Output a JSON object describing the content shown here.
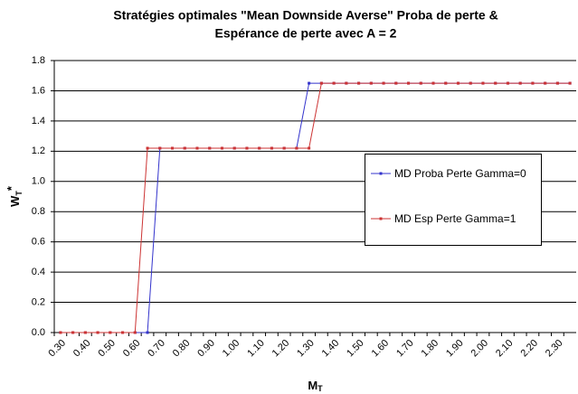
{
  "chart_data": {
    "type": "line",
    "title": [
      "Stratégies optimales \"Mean Downside Averse\" Proba de perte &",
      "Espérance de perte avec A = 2"
    ],
    "y_label": {
      "main": "W",
      "sub": "T",
      "sup": "*"
    },
    "x_label": {
      "main": "M",
      "sub": "T"
    },
    "categories": [
      "0.30",
      null,
      "0.40",
      null,
      "0.50",
      null,
      "0.60",
      null,
      "0.70",
      null,
      "0.80",
      null,
      "0.90",
      null,
      "1.00",
      null,
      "1.10",
      null,
      "1.20",
      null,
      "1.30",
      null,
      "1.40",
      null,
      "1.50",
      null,
      "1.60",
      null,
      "1.70",
      null,
      "1.80",
      null,
      "1.90",
      null,
      "2.00",
      null,
      "2.10",
      null,
      "2.20",
      null,
      "2.30",
      null
    ],
    "series": [
      {
        "name": "MD Proba Perte Gamma=0",
        "color": "#3333cc",
        "values": [
          0,
          0,
          0,
          0,
          0,
          0,
          0,
          0,
          1.22,
          1.22,
          1.22,
          1.22,
          1.22,
          1.22,
          1.22,
          1.22,
          1.22,
          1.22,
          1.22,
          1.22,
          1.65,
          1.65,
          1.65,
          1.65,
          1.65,
          1.65,
          1.65,
          1.65,
          1.65,
          1.65,
          1.65,
          1.65,
          1.65,
          1.65,
          1.65,
          1.65,
          1.65,
          1.65,
          1.65,
          1.65,
          1.65,
          1.65
        ]
      },
      {
        "name": "MD Esp Perte Gamma=1",
        "color": "#cc3333",
        "values": [
          0,
          0,
          0,
          0,
          0,
          0,
          0,
          1.22,
          1.22,
          1.22,
          1.22,
          1.22,
          1.22,
          1.22,
          1.22,
          1.22,
          1.22,
          1.22,
          1.22,
          1.22,
          1.22,
          1.65,
          1.65,
          1.65,
          1.65,
          1.65,
          1.65,
          1.65,
          1.65,
          1.65,
          1.65,
          1.65,
          1.65,
          1.65,
          1.65,
          1.65,
          1.65,
          1.65,
          1.65,
          1.65,
          1.65,
          1.65
        ]
      }
    ],
    "ylim": [
      0,
      1.8
    ],
    "yticks": [
      {
        "value": 0,
        "label": "0.0"
      },
      0.2,
      0.4,
      0.6,
      0.8,
      {
        "value": 1,
        "label": "1.0"
      },
      1.2,
      1.4,
      1.6,
      1.8
    ],
    "grid": true,
    "legend": "right"
  }
}
